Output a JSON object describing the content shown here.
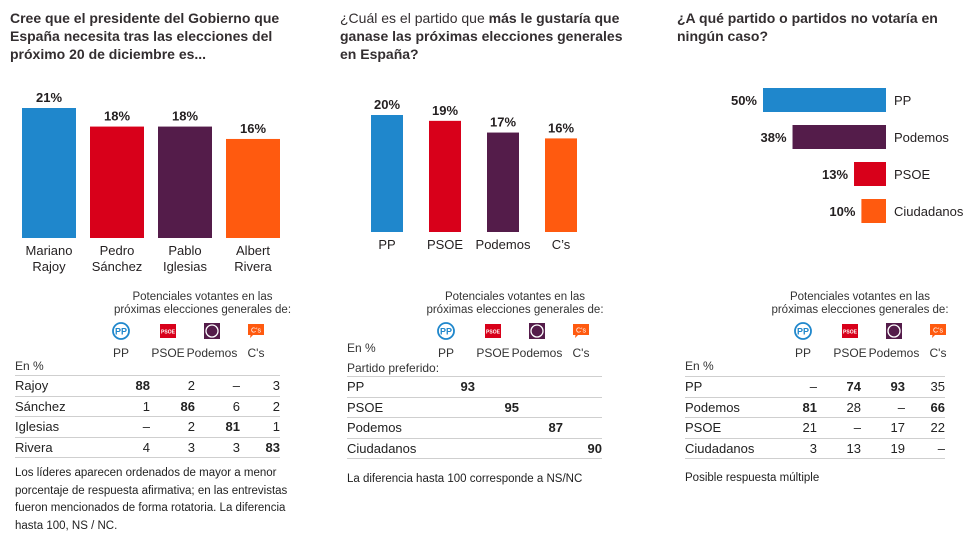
{
  "colors": {
    "PP": "#1f87cc",
    "PSOE": "#d8001a",
    "Podemos": "#541c4a",
    "Cs": "#ff5a0f"
  },
  "legend_columns": {
    "header_line1": "Potenciales votantes en las",
    "header_line2": "próximas elecciones generales de:",
    "parties": [
      {
        "label": "PP",
        "icon": "pp-logo-icon",
        "key": "PP"
      },
      {
        "label": "PSOE",
        "icon": "psoe-logo-icon",
        "key": "PSOE"
      },
      {
        "label": "Podemos",
        "icon": "podemos-logo-icon",
        "key": "Podemos"
      },
      {
        "label": "C's",
        "icon": "cs-logo-icon",
        "key": "Cs"
      }
    ],
    "unit": "En %"
  },
  "panel1": {
    "title": "Cree que el presidente del Gobierno que España necesita tras las elecciones del próximo 20 de diciembre es...",
    "rows": [
      {
        "label": "Rajoy",
        "values": [
          "88",
          "2",
          "–",
          "3"
        ],
        "bold": 0
      },
      {
        "label": "Sánchez",
        "values": [
          "1",
          "86",
          "6",
          "2"
        ],
        "bold": 1
      },
      {
        "label": "Iglesias",
        "values": [
          "–",
          "2",
          "81",
          "1"
        ],
        "bold": 2
      },
      {
        "label": "Rivera",
        "values": [
          "4",
          "3",
          "3",
          "83"
        ],
        "bold": 3
      }
    ],
    "note": "Los líderes aparecen ordenados de mayor a menor porcentaje de respuesta afirmativa; en las entrevistas fueron mencionados de forma rotatoria. La diferencia hasta 100, NS / NC."
  },
  "panel2": {
    "title_normal": "¿Cuál es el partido que ",
    "title_bold": "más le gustaría que ganase las próximas elecciones generales en España?",
    "row_header": "Partido preferido:",
    "rows": [
      {
        "label": "PP",
        "values": [
          "93",
          "",
          "",
          ""
        ],
        "bold": 0
      },
      {
        "label": "PSOE",
        "values": [
          "",
          "95",
          "",
          ""
        ],
        "bold": 1
      },
      {
        "label": "Podemos",
        "values": [
          "",
          "",
          "87",
          ""
        ],
        "bold": 2
      },
      {
        "label": "Ciudadanos",
        "values": [
          "",
          "",
          "",
          "90"
        ],
        "bold": 3
      }
    ],
    "note": "La diferencia hasta 100 corresponde a NS/NC"
  },
  "panel3": {
    "title": "¿A qué partido o partidos no votaría en ningún caso?",
    "rows": [
      {
        "label": "PP",
        "values": [
          "–",
          "74",
          "93",
          "35"
        ],
        "bold": [
          1,
          2
        ]
      },
      {
        "label": "Podemos",
        "values": [
          "81",
          "28",
          "–",
          "66"
        ],
        "bold": [
          0,
          3
        ]
      },
      {
        "label": "PSOE",
        "values": [
          "21",
          "–",
          "17",
          "22"
        ],
        "bold": []
      },
      {
        "label": "Ciudadanos",
        "values": [
          "3",
          "13",
          "19",
          "–"
        ],
        "bold": []
      }
    ],
    "note": "Posible respuesta múltiple"
  },
  "chart_data": [
    {
      "type": "bar",
      "title": "Cree que el presidente del Gobierno que España necesita tras las elecciones del próximo 20 de diciembre es...",
      "categories": [
        "Mariano Rajoy",
        "Pedro Sánchez",
        "Pablo Iglesias",
        "Albert Rivera"
      ],
      "category_lines": [
        [
          "Mariano",
          "Rajoy"
        ],
        [
          "Pedro",
          "Sánchez"
        ],
        [
          "Pablo",
          "Iglesias"
        ],
        [
          "Albert",
          "Rivera"
        ]
      ],
      "values": [
        21,
        18,
        18,
        16
      ],
      "data_labels": [
        "21%",
        "18%",
        "18%",
        "16%"
      ],
      "colors": [
        "#1f87cc",
        "#d8001a",
        "#541c4a",
        "#ff5a0f"
      ],
      "unit": "%",
      "ylim": [
        0,
        21
      ],
      "grid": false,
      "xlabel": "",
      "ylabel": ""
    },
    {
      "type": "bar",
      "title": "¿Cuál es el partido que más le gustaría que ganase las próximas elecciones generales en España?",
      "categories": [
        "PP",
        "PSOE",
        "Podemos",
        "C’s"
      ],
      "values": [
        20,
        19,
        17,
        16
      ],
      "data_labels": [
        "20%",
        "19%",
        "17%",
        "16%"
      ],
      "colors": [
        "#1f87cc",
        "#d8001a",
        "#541c4a",
        "#ff5a0f"
      ],
      "unit": "%",
      "ylim": [
        0,
        20
      ],
      "grid": false,
      "xlabel": "",
      "ylabel": ""
    },
    {
      "type": "bar",
      "orientation": "horizontal",
      "title": "¿A qué partido o partidos no votaría en ningún caso?",
      "categories": [
        "PP",
        "Podemos",
        "PSOE",
        "Ciudadanos"
      ],
      "values": [
        50,
        38,
        13,
        10
      ],
      "data_labels": [
        "50%",
        "38%",
        "13%",
        "10%"
      ],
      "colors": [
        "#1f87cc",
        "#541c4a",
        "#d8001a",
        "#ff5a0f"
      ],
      "unit": "%",
      "xlim": [
        0,
        50
      ],
      "grid": false,
      "xlabel": "",
      "ylabel": ""
    }
  ]
}
